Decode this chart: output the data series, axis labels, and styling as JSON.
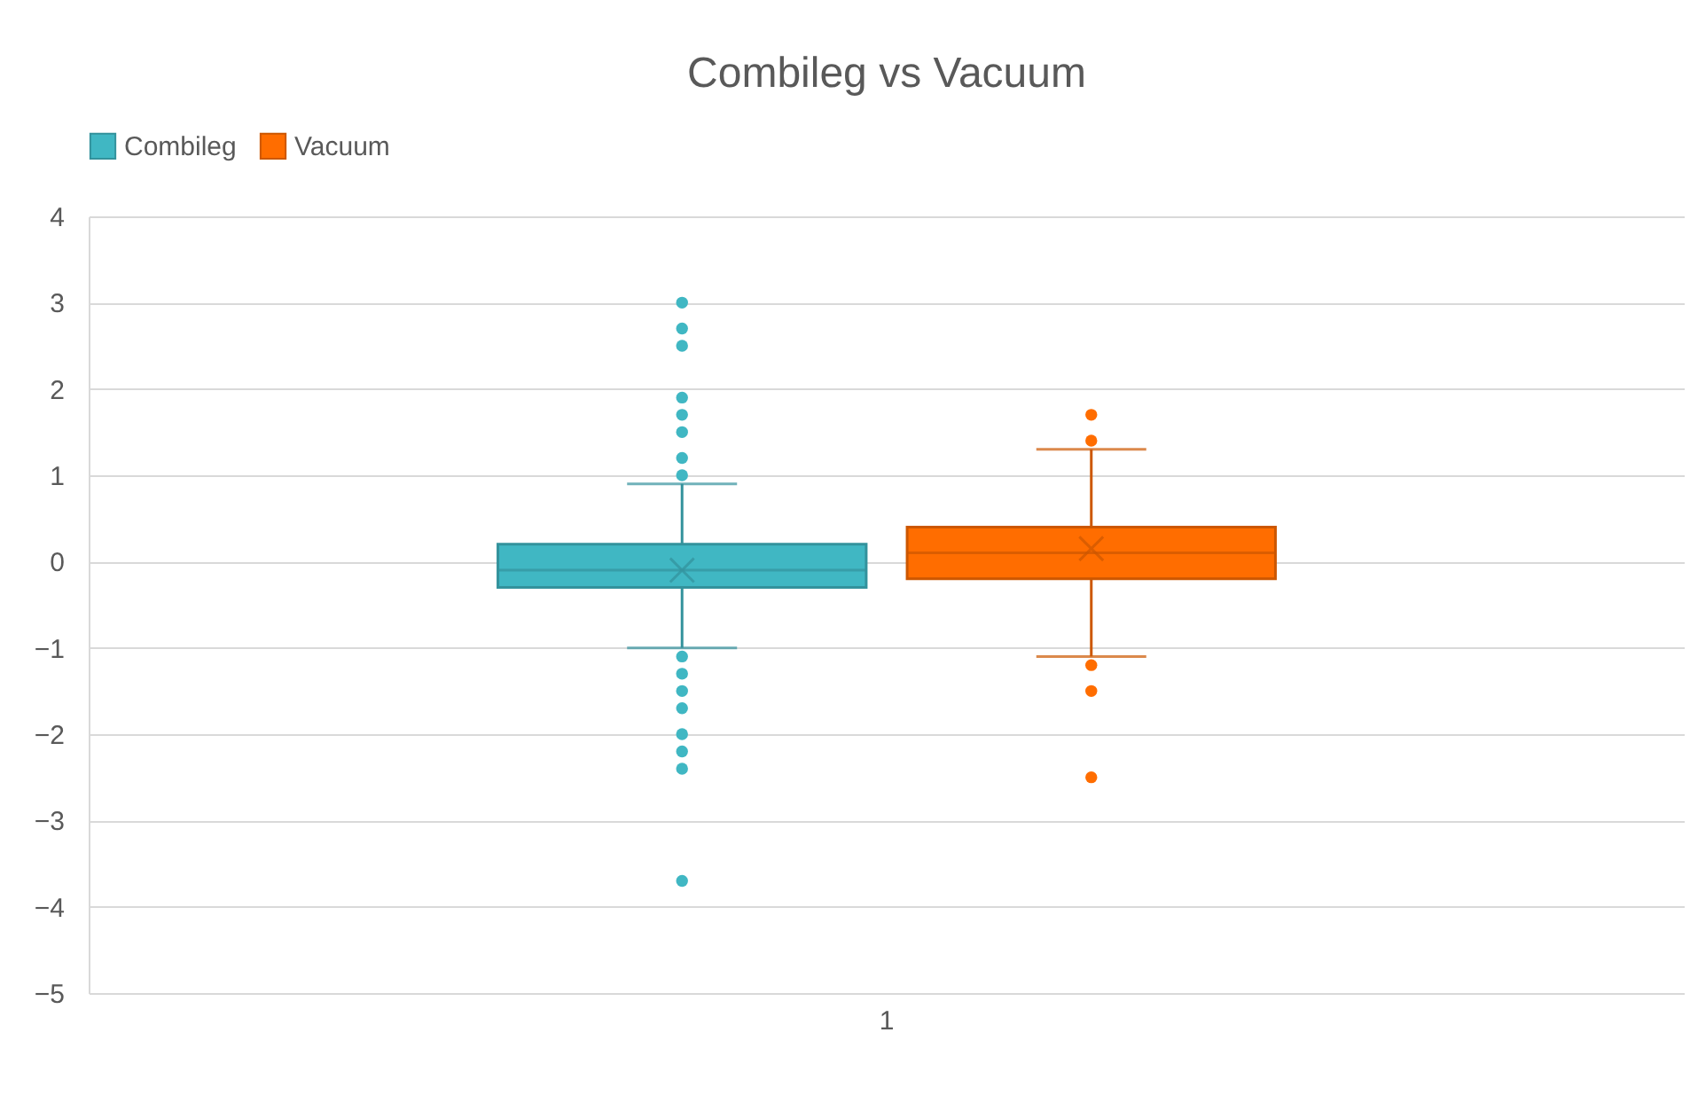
{
  "chart_data": {
    "type": "box",
    "title": "Combileg vs Vacuum",
    "categories": [
      "1"
    ],
    "series": [
      {
        "name": "Combileg",
        "color": "#40b7c3",
        "boxes": [
          {
            "low": -1.0,
            "q1": -0.3,
            "median": -0.1,
            "q3": 0.2,
            "high": 0.9,
            "mean": -0.1,
            "outliers": [
              3.0,
              2.7,
              2.5,
              1.9,
              1.7,
              1.5,
              1.2,
              1.0,
              -1.1,
              -1.3,
              -1.5,
              -1.7,
              -2.0,
              -2.2,
              -2.4,
              -3.7
            ]
          }
        ]
      },
      {
        "name": "Vacuum",
        "color": "#ff6d00",
        "boxes": [
          {
            "low": -1.1,
            "q1": -0.2,
            "median": 0.1,
            "q3": 0.4,
            "high": 1.3,
            "mean": 0.15,
            "outliers": [
              1.7,
              1.4,
              -1.2,
              -1.5,
              -2.5
            ]
          }
        ]
      }
    ],
    "ylim": [
      -5,
      4
    ],
    "yticks": [
      -5,
      -4,
      -3,
      -2,
      -1,
      0,
      1,
      2,
      3,
      4
    ],
    "grid": "y",
    "legend": "top",
    "marker": "circle"
  }
}
